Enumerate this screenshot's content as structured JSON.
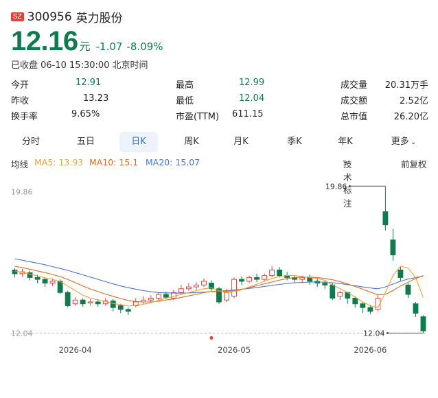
{
  "header": {
    "market": "SZ",
    "code": "300956",
    "name": "英力股份"
  },
  "quote": {
    "price": "12.16",
    "unit": "元",
    "change": "-1.07",
    "change_pct": "-8.09%",
    "status": "已收盘 06-10 15:30:00 北京时间"
  },
  "stats": [
    [
      {
        "label": "今开",
        "value": "12.91"
      },
      {
        "label": "最高",
        "value": "12.99"
      },
      {
        "label": "成交量",
        "value": "20.31万手"
      }
    ],
    [
      {
        "label": "昨收",
        "value": "13.23"
      },
      {
        "label": "最低",
        "value": "12.04"
      },
      {
        "label": "成交额",
        "value": "2.52亿"
      }
    ],
    [
      {
        "label": "换手率",
        "value": "9.65%"
      },
      {
        "label": "市盈(TTM)",
        "value": "611.15"
      },
      {
        "label": "总市值",
        "value": "26.20亿"
      }
    ]
  ],
  "tabs": [
    "分时",
    "五日",
    "日K",
    "周K",
    "月K",
    "季K",
    "年K",
    "更多"
  ],
  "active_tab": "日K",
  "ma_legend": {
    "title": "均线",
    "ma5": "MA5: 13.93",
    "ma10": "MA10: 15.1",
    "ma20": "MA20: 15.07",
    "tech": "技术标注",
    "adjust": "前复权"
  },
  "colors": {
    "up": "#e0443c",
    "down": "#0e7a4e",
    "ma5": "#e8a33a",
    "ma10": "#e06a1f",
    "ma20": "#4a74d8",
    "accent": "#2b6fd6"
  },
  "chart_data": {
    "type": "candlestick",
    "ylim": [
      11.8,
      20.2
    ],
    "y_ticks": [
      "19.86",
      "12.04"
    ],
    "max_label": "19.86",
    "min_label": "12.04",
    "x_ticks": [
      {
        "label": "2026-04",
        "index": 8
      },
      {
        "label": "2026-05",
        "index": 29
      },
      {
        "label": "2026-06",
        "index": 47
      }
    ],
    "candles": [
      [
        15.4,
        15.2,
        15.5,
        15.0
      ],
      [
        15.2,
        15.3,
        15.45,
        15.05
      ],
      [
        15.25,
        15.0,
        15.35,
        14.85
      ],
      [
        15.0,
        14.9,
        15.15,
        14.7
      ],
      [
        14.9,
        14.7,
        15.0,
        14.5
      ],
      [
        14.7,
        14.8,
        14.95,
        14.55
      ],
      [
        14.8,
        14.2,
        14.9,
        14.1
      ],
      [
        14.2,
        13.5,
        14.3,
        13.4
      ],
      [
        13.6,
        13.8,
        13.95,
        13.5
      ],
      [
        13.8,
        13.6,
        13.9,
        13.45
      ],
      [
        13.65,
        13.7,
        13.85,
        13.5
      ],
      [
        13.7,
        13.6,
        13.8,
        13.45
      ],
      [
        13.6,
        13.75,
        13.9,
        13.5
      ],
      [
        13.75,
        13.4,
        13.85,
        13.2
      ],
      [
        13.5,
        13.3,
        13.6,
        13.1
      ],
      [
        13.3,
        13.2,
        13.4,
        13.0
      ],
      [
        13.5,
        13.7,
        13.9,
        13.4
      ],
      [
        13.7,
        13.8,
        14.0,
        13.6
      ],
      [
        13.8,
        13.9,
        14.05,
        13.65
      ],
      [
        13.9,
        14.1,
        14.2,
        13.8
      ],
      [
        14.1,
        13.95,
        14.25,
        13.85
      ],
      [
        13.9,
        14.2,
        14.35,
        13.8
      ],
      [
        14.2,
        14.4,
        14.6,
        14.1
      ],
      [
        14.4,
        14.5,
        14.7,
        14.3
      ],
      [
        14.5,
        14.6,
        14.75,
        14.35
      ],
      [
        14.6,
        14.8,
        14.95,
        14.5
      ],
      [
        14.7,
        14.4,
        14.85,
        14.3
      ],
      [
        14.4,
        13.7,
        14.5,
        13.6
      ],
      [
        13.8,
        14.2,
        14.4,
        13.7
      ],
      [
        14.0,
        14.9,
        15.0,
        13.9
      ],
      [
        14.9,
        14.8,
        15.05,
        14.6
      ],
      [
        14.8,
        15.0,
        15.1,
        14.7
      ],
      [
        15.0,
        14.9,
        15.2,
        14.75
      ],
      [
        14.9,
        15.1,
        15.2,
        14.8
      ],
      [
        15.1,
        15.4,
        15.6,
        15.0
      ],
      [
        15.4,
        15.1,
        15.55,
        15.0
      ],
      [
        15.1,
        15.0,
        15.3,
        14.85
      ],
      [
        15.0,
        14.9,
        15.1,
        14.75
      ],
      [
        14.9,
        15.0,
        15.1,
        14.7
      ],
      [
        15.0,
        14.8,
        15.15,
        14.6
      ],
      [
        14.8,
        14.7,
        15.0,
        14.5
      ],
      [
        14.7,
        14.6,
        14.85,
        14.4
      ],
      [
        14.6,
        13.9,
        14.7,
        13.8
      ],
      [
        14.0,
        14.2,
        14.3,
        13.8
      ],
      [
        14.2,
        13.9,
        14.25,
        13.6
      ],
      [
        13.9,
        13.6,
        14.0,
        13.4
      ],
      [
        13.6,
        13.4,
        13.7,
        13.1
      ],
      [
        13.4,
        13.2,
        13.55,
        13.05
      ],
      [
        13.3,
        13.9,
        14.1,
        13.2
      ],
      [
        18.5,
        17.8,
        19.86,
        17.5
      ],
      [
        17.0,
        16.2,
        17.6,
        15.9
      ],
      [
        15.4,
        15.0,
        15.6,
        14.8
      ],
      [
        14.6,
        14.1,
        14.7,
        13.9
      ],
      [
        13.6,
        13.1,
        13.7,
        12.9
      ],
      [
        12.91,
        12.16,
        12.99,
        12.04
      ]
    ],
    "ma5": [
      15.35,
      15.28,
      15.18,
      15.08,
      14.98,
      14.9,
      14.78,
      14.55,
      14.3,
      14.06,
      13.9,
      13.82,
      13.72,
      13.62,
      13.55,
      13.48,
      13.52,
      13.58,
      13.66,
      13.78,
      13.9,
      14.0,
      14.1,
      14.2,
      14.3,
      14.4,
      14.45,
      14.3,
      14.2,
      14.25,
      14.35,
      14.5,
      14.65,
      14.8,
      14.95,
      15.05,
      15.1,
      15.1,
      15.05,
      15.0,
      14.95,
      14.85,
      14.6,
      14.4,
      14.2,
      13.95,
      13.7,
      13.5,
      13.4,
      14.2,
      15.1,
      15.6,
      15.5,
      15.0,
      13.93
    ],
    "ma10": [
      15.6,
      15.52,
      15.44,
      15.35,
      15.26,
      15.16,
      15.05,
      14.9,
      14.72,
      14.55,
      14.38,
      14.25,
      14.12,
      14.0,
      13.88,
      13.78,
      13.72,
      13.7,
      13.7,
      13.74,
      13.8,
      13.86,
      13.94,
      14.02,
      14.1,
      14.2,
      14.26,
      14.26,
      14.26,
      14.3,
      14.38,
      14.46,
      14.56,
      14.66,
      14.76,
      14.86,
      14.94,
      15.0,
      15.02,
      15.02,
      15.0,
      14.95,
      14.88,
      14.78,
      14.66,
      14.52,
      14.38,
      14.22,
      14.08,
      14.1,
      14.3,
      14.55,
      14.75,
      14.95,
      15.1
    ],
    "ma20": [
      16.0,
      15.92,
      15.84,
      15.76,
      15.68,
      15.58,
      15.48,
      15.38,
      15.26,
      15.14,
      15.02,
      14.9,
      14.78,
      14.66,
      14.55,
      14.46,
      14.38,
      14.3,
      14.24,
      14.2,
      14.18,
      14.17,
      14.17,
      14.18,
      14.2,
      14.22,
      14.25,
      14.27,
      14.3,
      14.34,
      14.38,
      14.42,
      14.47,
      14.52,
      14.58,
      14.63,
      14.68,
      14.72,
      14.74,
      14.76,
      14.76,
      14.75,
      14.72,
      14.68,
      14.62,
      14.56,
      14.5,
      14.44,
      14.4,
      14.5,
      14.65,
      14.8,
      14.92,
      15.0,
      15.07
    ]
  }
}
